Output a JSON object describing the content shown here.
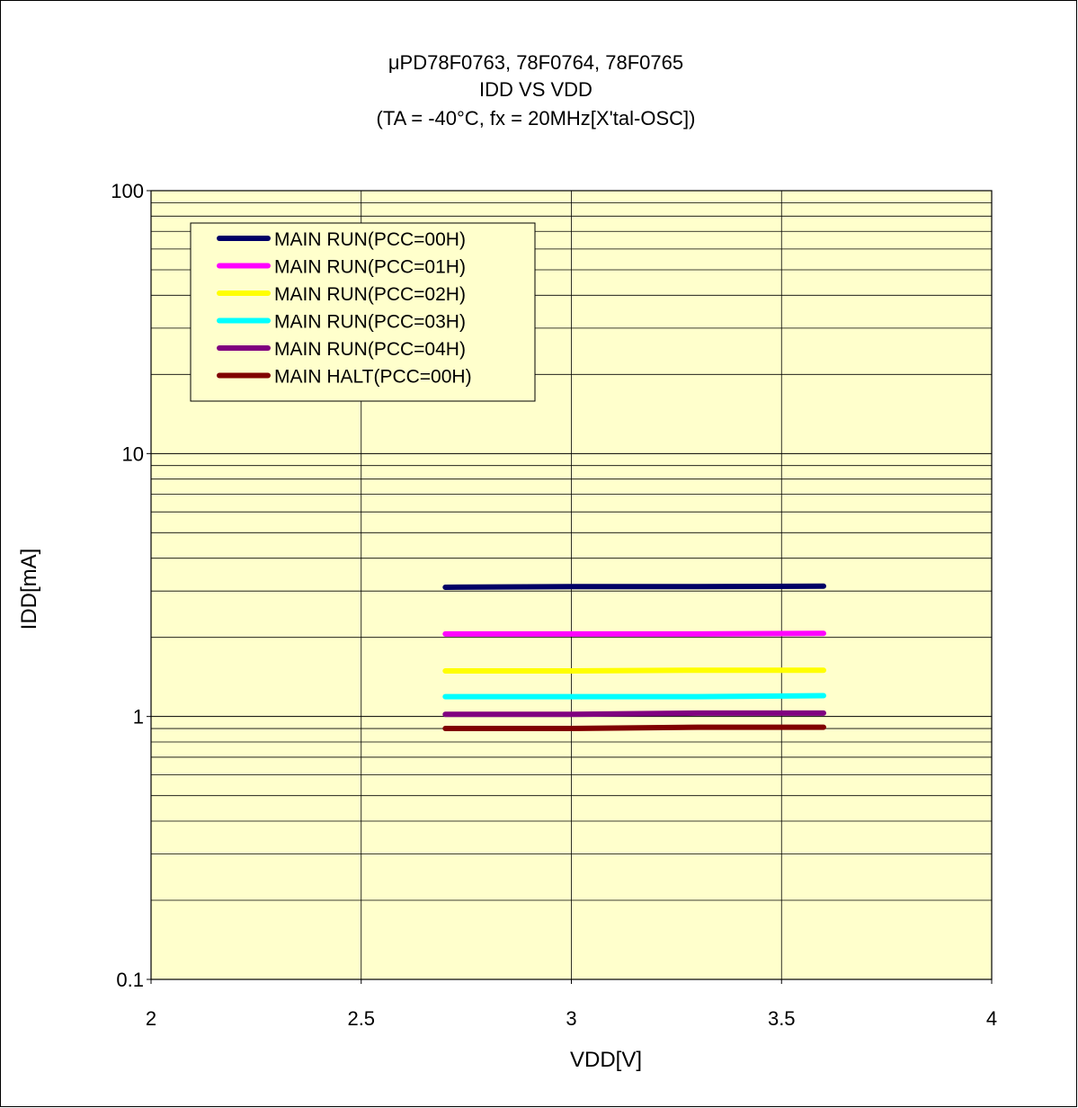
{
  "chart_data": {
    "type": "line",
    "title_lines": [
      "μPD78F0763, 78F0764, 78F0765",
      "IDD VS VDD",
      "(TA = -40°C, fx = 20MHz[X'tal-OSC])"
    ],
    "xlabel": "VDD[V]",
    "ylabel": "IDD[mA]",
    "xlim": [
      2,
      4
    ],
    "ylim": [
      0.1,
      100
    ],
    "yscale": "log",
    "xticks": [
      "2",
      "2.5",
      "3",
      "3.5",
      "4"
    ],
    "yticks": [
      "0.1",
      "1",
      "10",
      "100"
    ],
    "grid": true,
    "legend_position": "top-left",
    "plot_background": "#ffffcc",
    "series": [
      {
        "name": "MAIN RUN(PCC=00H)",
        "color": "#000066",
        "x": [
          2.7,
          3.0,
          3.3,
          3.6
        ],
        "y": [
          3.1,
          3.12,
          3.12,
          3.13
        ]
      },
      {
        "name": "MAIN RUN(PCC=01H)",
        "color": "#ff00ff",
        "x": [
          2.7,
          3.0,
          3.3,
          3.6
        ],
        "y": [
          2.06,
          2.06,
          2.06,
          2.07
        ]
      },
      {
        "name": "MAIN RUN(PCC=02H)",
        "color": "#ffff00",
        "x": [
          2.7,
          3.0,
          3.3,
          3.6
        ],
        "y": [
          1.49,
          1.49,
          1.5,
          1.5
        ]
      },
      {
        "name": "MAIN RUN(PCC=03H)",
        "color": "#00ffff",
        "x": [
          2.7,
          3.0,
          3.3,
          3.6
        ],
        "y": [
          1.19,
          1.19,
          1.19,
          1.2
        ]
      },
      {
        "name": "MAIN RUN(PCC=04H)",
        "color": "#800080",
        "x": [
          2.7,
          3.0,
          3.3,
          3.6
        ],
        "y": [
          1.02,
          1.02,
          1.03,
          1.03
        ]
      },
      {
        "name": "MAIN HALT(PCC=00H)",
        "color": "#800000",
        "x": [
          2.7,
          3.0,
          3.3,
          3.6
        ],
        "y": [
          0.9,
          0.9,
          0.91,
          0.91
        ]
      }
    ]
  }
}
